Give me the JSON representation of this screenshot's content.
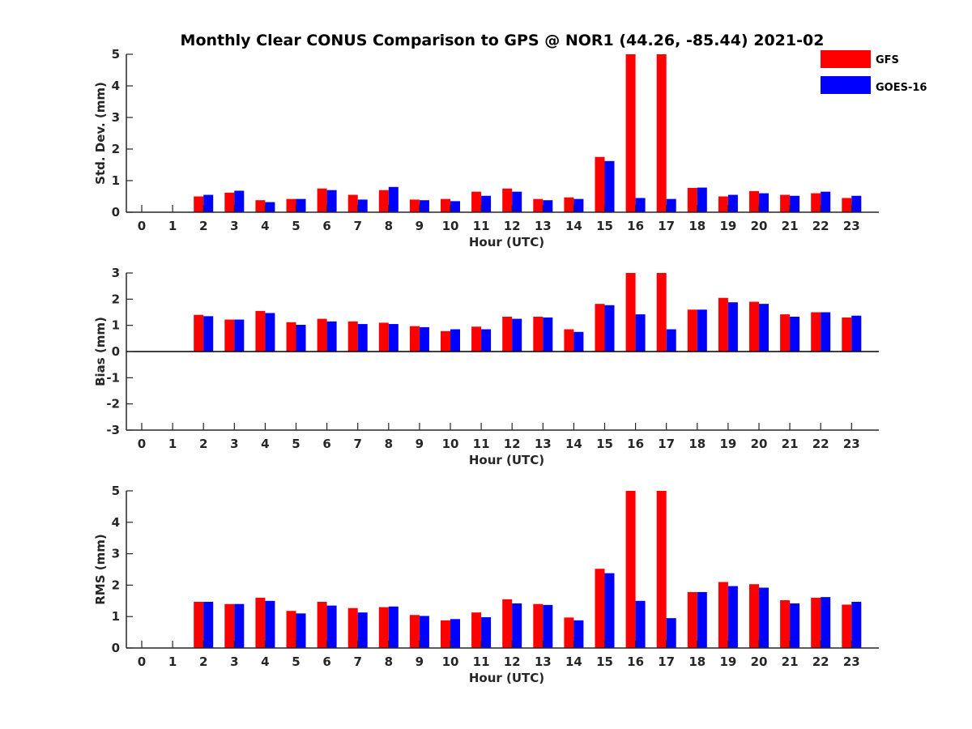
{
  "chart_data": {
    "title": "Monthly Clear CONUS Comparison to GPS @ NOR1 (44.26, -85.44) 2021-02",
    "legend": [
      {
        "name": "GFS",
        "color": "#ff0000"
      },
      {
        "name": "GOES-16",
        "color": "#0000ff"
      }
    ],
    "legend_position": "top-right",
    "categories": [
      "0",
      "1",
      "2",
      "3",
      "4",
      "5",
      "6",
      "7",
      "8",
      "9",
      "10",
      "11",
      "12",
      "13",
      "14",
      "15",
      "16",
      "17",
      "18",
      "19",
      "20",
      "21",
      "22",
      "23"
    ],
    "subplots": [
      {
        "type": "bar",
        "xlabel": "Hour (UTC)",
        "ylabel": "Std. Dev. (mm)",
        "ylim": [
          0,
          5
        ],
        "yticks": [
          "0",
          "1",
          "2",
          "3",
          "4",
          "5"
        ],
        "series": [
          {
            "name": "GFS",
            "values": [
              null,
              null,
              0.5,
              0.62,
              0.38,
              0.42,
              0.75,
              0.55,
              0.7,
              0.4,
              0.42,
              0.65,
              0.75,
              0.42,
              0.47,
              1.75,
              5.0,
              5.0,
              0.77,
              0.5,
              0.67,
              0.55,
              0.6,
              0.45
            ]
          },
          {
            "name": "GOES-16",
            "values": [
              null,
              null,
              0.55,
              0.68,
              0.32,
              0.42,
              0.7,
              0.4,
              0.8,
              0.38,
              0.35,
              0.52,
              0.65,
              0.38,
              0.42,
              1.62,
              0.45,
              0.42,
              0.78,
              0.55,
              0.6,
              0.52,
              0.65,
              0.52
            ]
          }
        ]
      },
      {
        "type": "bar",
        "xlabel": "Hour (UTC)",
        "ylabel": "Bias (mm)",
        "ylim": [
          -3,
          3
        ],
        "yticks": [
          "-3",
          "-2",
          "-1",
          "0",
          "1",
          "2",
          "3"
        ],
        "series": [
          {
            "name": "GFS",
            "values": [
              null,
              null,
              1.4,
              1.22,
              1.55,
              1.12,
              1.25,
              1.15,
              1.1,
              0.97,
              0.78,
              0.95,
              1.33,
              1.33,
              0.85,
              1.82,
              3.0,
              3.0,
              1.6,
              2.05,
              1.9,
              1.42,
              1.5,
              1.3
            ]
          },
          {
            "name": "GOES-16",
            "values": [
              null,
              null,
              1.35,
              1.22,
              1.47,
              1.02,
              1.15,
              1.05,
              1.05,
              0.93,
              0.85,
              0.85,
              1.25,
              1.3,
              0.75,
              1.77,
              1.42,
              0.85,
              1.6,
              1.88,
              1.82,
              1.33,
              1.5,
              1.37
            ]
          }
        ]
      },
      {
        "type": "bar",
        "xlabel": "Hour (UTC)",
        "ylabel": "RMS (mm)",
        "ylim": [
          0,
          5
        ],
        "yticks": [
          "0",
          "1",
          "2",
          "3",
          "4",
          "5"
        ],
        "series": [
          {
            "name": "GFS",
            "values": [
              null,
              null,
              1.47,
              1.4,
              1.6,
              1.18,
              1.47,
              1.27,
              1.3,
              1.05,
              0.88,
              1.13,
              1.55,
              1.4,
              0.97,
              2.52,
              5.0,
              5.0,
              1.78,
              2.1,
              2.03,
              1.52,
              1.6,
              1.38
            ]
          },
          {
            "name": "GOES-16",
            "values": [
              null,
              null,
              1.47,
              1.4,
              1.5,
              1.1,
              1.35,
              1.13,
              1.32,
              1.02,
              0.92,
              0.98,
              1.42,
              1.37,
              0.88,
              2.38,
              1.5,
              0.95,
              1.78,
              1.97,
              1.92,
              1.42,
              1.62,
              1.47
            ]
          }
        ]
      }
    ]
  }
}
